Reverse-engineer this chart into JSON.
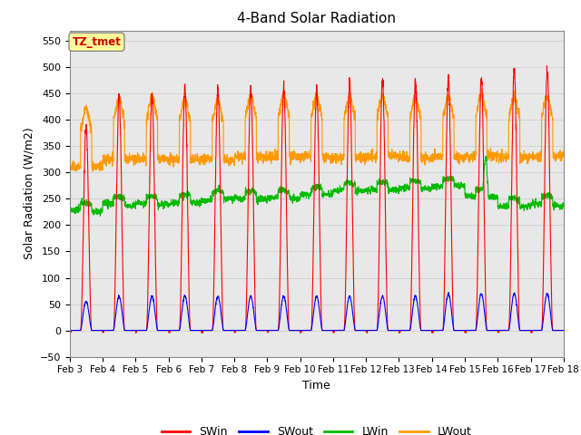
{
  "title": "4-Band Solar Radiation",
  "xlabel": "Time",
  "ylabel": "Solar Radiation (W/m2)",
  "ylim": [
    -50,
    570
  ],
  "xlim": [
    0,
    15
  ],
  "annotation_text": "TZ_tmet",
  "annotation_color": "#cc0000",
  "annotation_bg": "#ffff99",
  "tick_labels": [
    "Feb 3",
    "Feb 4",
    "Feb 5",
    "Feb 6",
    "Feb 7",
    "Feb 8",
    "Feb 9",
    "Feb 10",
    "Feb 11",
    "Feb 12",
    "Feb 13",
    "Feb 14",
    "Feb 15",
    "Feb 16",
    "Feb 17",
    "Feb 18"
  ],
  "legend_entries": [
    "SWin",
    "SWout",
    "LWin",
    "LWout"
  ],
  "legend_colors": [
    "#ff0000",
    "#0000ff",
    "#00bb00",
    "#ff9900"
  ],
  "grid_color": "#d0d0d0",
  "bg_color": "#e8e8e8",
  "n_days": 15,
  "day_peaks_sw": [
    390,
    450,
    445,
    460,
    460,
    460,
    460,
    460,
    470,
    475,
    475,
    480,
    480,
    500,
    495
  ],
  "day_peaks_swout": [
    55,
    65,
    65,
    65,
    65,
    65,
    65,
    65,
    65,
    65,
    65,
    70,
    70,
    70,
    70
  ],
  "lwout_night": [
    310,
    325,
    325,
    325,
    325,
    330,
    330,
    330,
    330,
    330,
    330,
    330,
    330,
    330,
    330
  ],
  "lwout_day_add": [
    80,
    85,
    85,
    85,
    85,
    85,
    85,
    85,
    85,
    85,
    85,
    85,
    85,
    85,
    85
  ],
  "lwin_base": [
    228,
    240,
    242,
    240,
    248,
    250,
    252,
    260,
    265,
    268,
    270,
    272,
    255,
    235,
    240
  ]
}
